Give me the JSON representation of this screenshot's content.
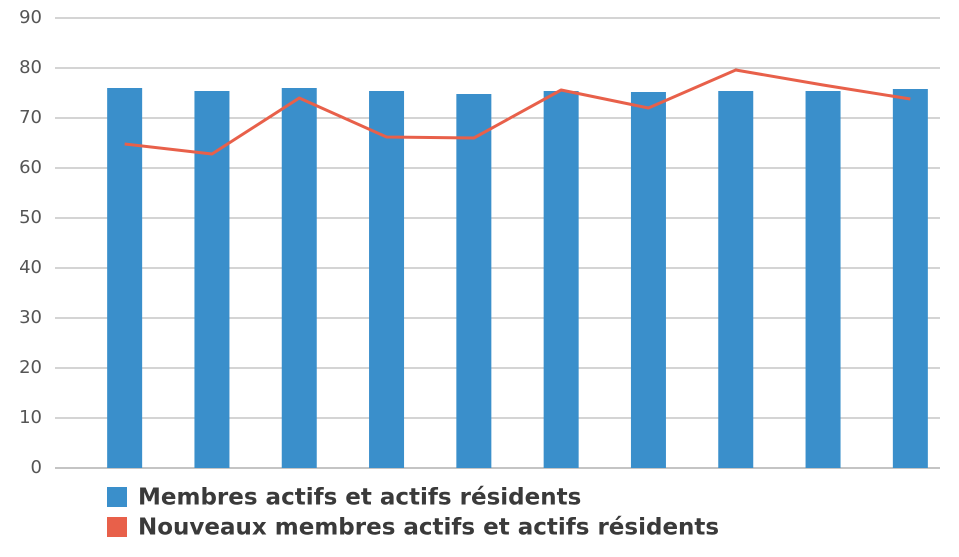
{
  "chart_data": {
    "type": "bar_line",
    "categories": [
      null,
      null,
      null,
      null,
      null,
      null,
      null,
      null,
      null,
      null
    ],
    "series": [
      {
        "name": "Membres actifs et actifs résidents",
        "type": "bar",
        "color": "#3a8fcb",
        "values": [
          76,
          75.4,
          76,
          75.4,
          74.8,
          75.4,
          75.2,
          75.4,
          75.4,
          75.8
        ]
      },
      {
        "name": "Nouveaux membres actifs et actifs résidents",
        "type": "line",
        "color": "#e8604a",
        "values": [
          64.8,
          62.8,
          74,
          66.2,
          66,
          75.6,
          72,
          79.6,
          76.6,
          73.8
        ]
      }
    ],
    "ylim": [
      0,
      90
    ],
    "yticks": [
      0,
      10,
      20,
      30,
      40,
      50,
      60,
      70,
      80,
      90
    ],
    "grid": true
  }
}
